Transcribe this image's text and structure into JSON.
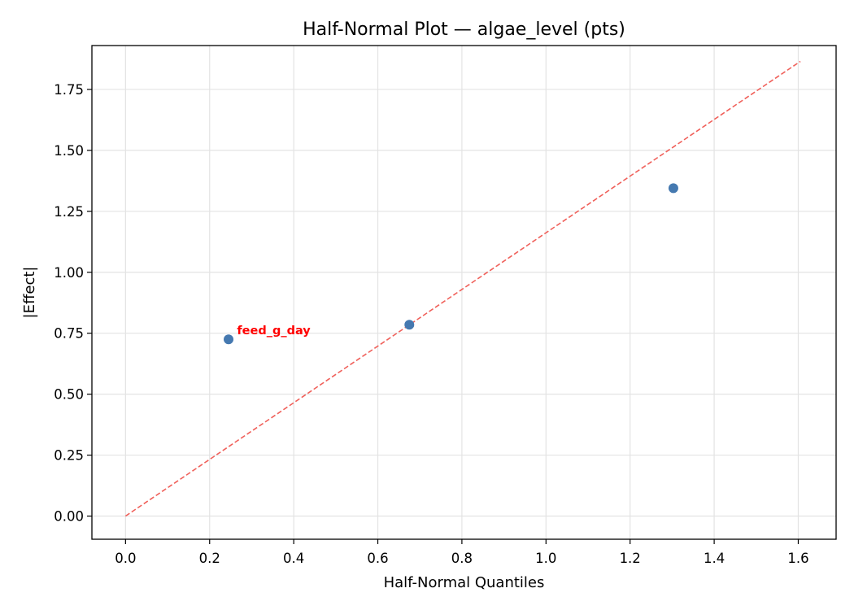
{
  "chart_data": {
    "type": "scatter",
    "title": "Half-Normal Plot — algae_level (pts)",
    "xlabel": "Half-Normal Quantiles",
    "ylabel": "|Effect|",
    "xlim": [
      -0.08,
      1.69
    ],
    "ylim": [
      -0.095,
      1.93
    ],
    "xticks": [
      0.0,
      0.2,
      0.4,
      0.6,
      0.8,
      1.0,
      1.2,
      1.4,
      1.6
    ],
    "xtick_labels": [
      "0.0",
      "0.2",
      "0.4",
      "0.6",
      "0.8",
      "1.0",
      "1.2",
      "1.4",
      "1.6"
    ],
    "yticks": [
      0.0,
      0.25,
      0.5,
      0.75,
      1.0,
      1.25,
      1.5,
      1.75
    ],
    "ytick_labels": [
      "0.00",
      "0.25",
      "0.50",
      "0.75",
      "1.00",
      "1.25",
      "1.50",
      "1.75"
    ],
    "grid": true,
    "points": [
      {
        "x": 0.245,
        "y": 0.725
      },
      {
        "x": 0.675,
        "y": 0.785
      },
      {
        "x": 1.303,
        "y": 1.345
      }
    ],
    "reference_line": {
      "x": [
        0.0,
        1.605
      ],
      "y": [
        0.0,
        1.865
      ]
    },
    "annotations": [
      {
        "text": "feed_g_day",
        "x": 0.265,
        "y": 0.745
      }
    ],
    "colors": {
      "points": "#4579b0",
      "reference_line": "#f0605a",
      "annotation": "#ff0000",
      "grid": "#e3e3e3"
    }
  }
}
